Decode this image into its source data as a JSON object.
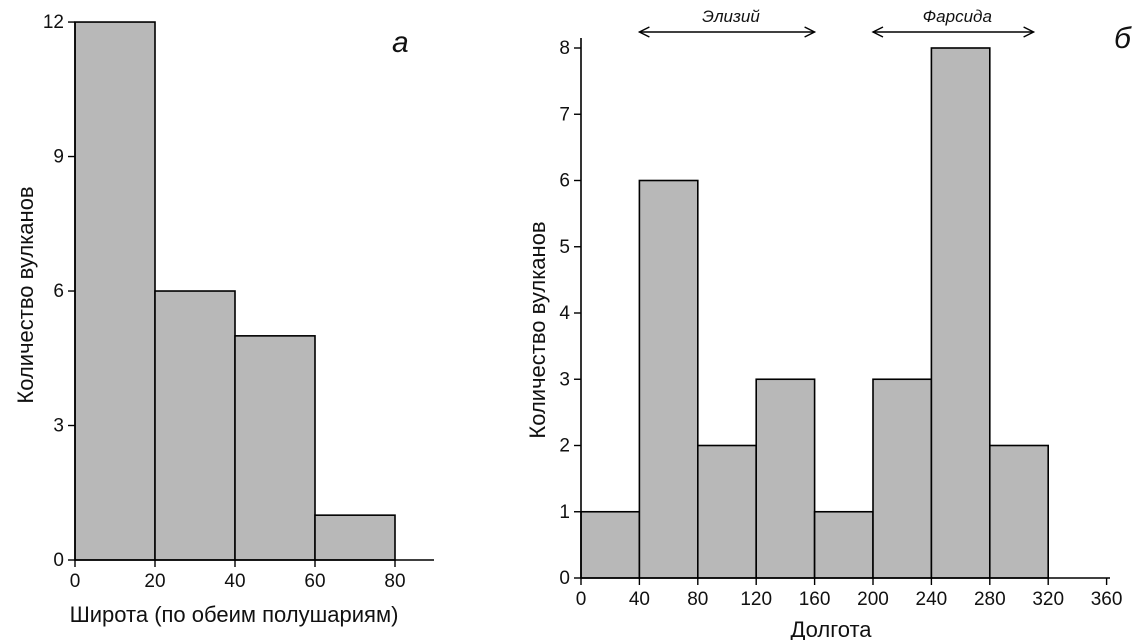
{
  "chart_data": [
    {
      "type": "bar",
      "panel": "а",
      "histogram": true,
      "bin_edges": [
        0,
        20,
        40,
        60,
        80
      ],
      "values": [
        12,
        6,
        5,
        1
      ],
      "xlabel": "Широта (по  обеим  полушариям)",
      "ylabel": "Количество вулканов",
      "xticks": [
        0,
        20,
        40,
        60,
        80
      ],
      "yticks": [
        0,
        3,
        6,
        9,
        12
      ],
      "xlim": [
        0,
        90
      ],
      "ylim": [
        0,
        12
      ],
      "grid": false
    },
    {
      "type": "bar",
      "panel": "б",
      "histogram": true,
      "bin_edges": [
        0,
        40,
        80,
        120,
        160,
        200,
        240,
        280,
        320
      ],
      "values": [
        1,
        6,
        2,
        3,
        1,
        3,
        8,
        2
      ],
      "xlabel": "Долгота",
      "ylabel": "Количество вулканов",
      "xticks": [
        0,
        40,
        80,
        120,
        160,
        200,
        240,
        280,
        320,
        360
      ],
      "yticks": [
        0,
        1,
        2,
        3,
        4,
        5,
        6,
        7,
        8
      ],
      "xlim": [
        0,
        360
      ],
      "ylim": [
        0,
        8
      ],
      "grid": false,
      "annotations": [
        {
          "text": "Элизий",
          "x_range": [
            40,
            160
          ]
        },
        {
          "text": "Фарсида",
          "x_range": [
            200,
            310
          ]
        }
      ]
    }
  ]
}
